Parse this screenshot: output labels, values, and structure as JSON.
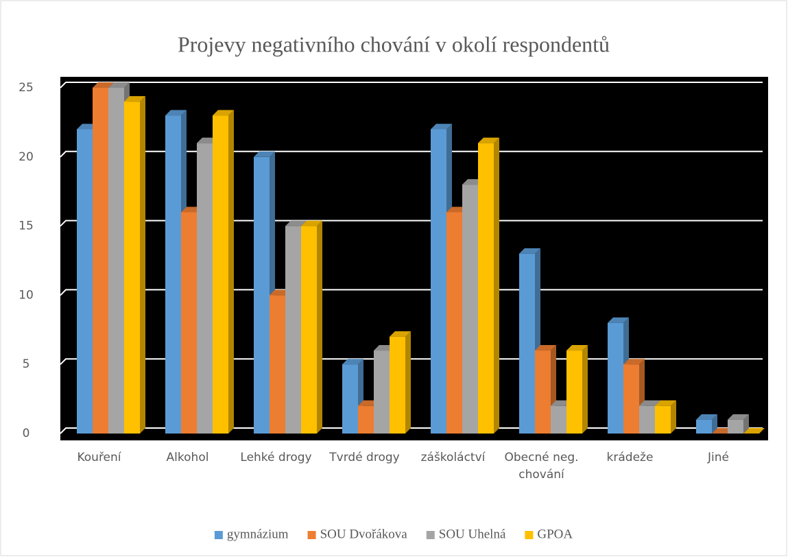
{
  "chart_data": {
    "type": "bar3d",
    "title": "Projevy negativního chování v okolí respondentů",
    "categories": [
      "Kouření",
      "Alkohol",
      "Lehké drogy",
      "Tvrdé drogy",
      "záškoláctví",
      "Obecné neg. chování",
      "krádeže",
      "Jiné"
    ],
    "series": [
      {
        "name": "gymnázium",
        "color": "#5b9bd5",
        "values": [
          22,
          23,
          20,
          5,
          22,
          13,
          8,
          1
        ]
      },
      {
        "name": "SOU Dvořákova",
        "color": "#ed7d31",
        "values": [
          25,
          16,
          10,
          2,
          16,
          6,
          5,
          0
        ]
      },
      {
        "name": "SOU Uhelná",
        "color": "#a5a5a5",
        "values": [
          25,
          21,
          15,
          6,
          18,
          2,
          2,
          1
        ]
      },
      {
        "name": "GPOA",
        "color": "#ffc000",
        "values": [
          24,
          23,
          15,
          7,
          21,
          6,
          2,
          0
        ]
      }
    ],
    "ylim": [
      0,
      25
    ],
    "yticks": [
      0,
      5,
      10,
      15,
      20,
      25
    ],
    "grid": true,
    "legend": "bottom"
  }
}
